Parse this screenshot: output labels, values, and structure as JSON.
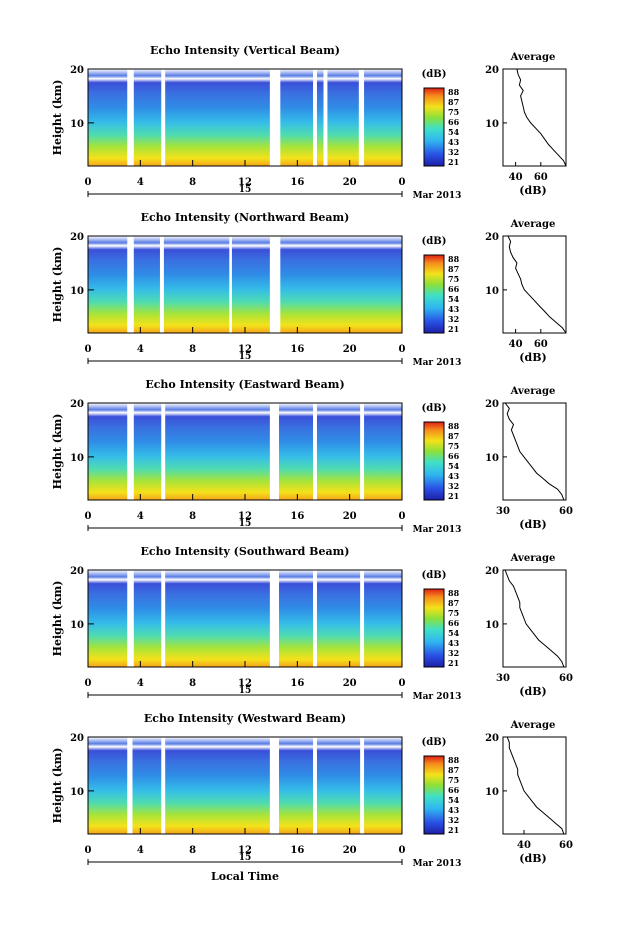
{
  "x_label": "Local Time",
  "date_label": "Mar 2013",
  "day_label": "15",
  "colorbar_unit": "(dB)",
  "colorbar_ticks": [
    "88",
    "87",
    "75",
    "66",
    "54",
    "43",
    "32",
    "21"
  ],
  "ylabel": "Height (km)",
  "avg_title": "Average",
  "avg_xlabel": "(dB)",
  "colors": {
    "low": "#2a2fd6",
    "mid_cyan": "#30d6e8",
    "mid_green": "#8be03a",
    "yellow": "#f4e21a",
    "high": "#e8281a"
  },
  "chart_data": [
    {
      "type": "heatmap",
      "title": "Echo Intensity (Vertical Beam)",
      "x_ticks": [
        "0",
        "4",
        "8",
        "12",
        "16",
        "20",
        "0"
      ],
      "y_ticks": [
        "20",
        "10"
      ],
      "xlim": [
        0,
        24
      ],
      "ylim": [
        2,
        20
      ],
      "gaps_hours": [
        [
          3.0,
          3.5
        ],
        [
          5.6,
          5.9
        ],
        [
          13.9,
          14.7
        ],
        [
          17.2,
          17.5
        ],
        [
          18.0,
          18.3
        ],
        [
          20.7,
          21.1
        ]
      ],
      "avg": {
        "xlim": [
          30,
          80
        ],
        "x_ticks": [
          "40",
          "60"
        ],
        "y_ticks": [
          "20",
          "10"
        ],
        "profile": [
          [
            80,
            2
          ],
          [
            78,
            3
          ],
          [
            74,
            4
          ],
          [
            70,
            5
          ],
          [
            66,
            6
          ],
          [
            63,
            7
          ],
          [
            60,
            8
          ],
          [
            56,
            9
          ],
          [
            52,
            10
          ],
          [
            49,
            11
          ],
          [
            47,
            12
          ],
          [
            46,
            13
          ],
          [
            45,
            14
          ],
          [
            44,
            15
          ],
          [
            46,
            16
          ],
          [
            43,
            17
          ],
          [
            44,
            18
          ],
          [
            42,
            19
          ],
          [
            41,
            20
          ]
        ]
      }
    },
    {
      "type": "heatmap",
      "title": "Echo Intensity (Northward Beam)",
      "x_ticks": [
        "0",
        "4",
        "8",
        "12",
        "16",
        "20",
        "0"
      ],
      "y_ticks": [
        "20",
        "10"
      ],
      "xlim": [
        0,
        24
      ],
      "ylim": [
        2,
        20
      ],
      "gaps_hours": [
        [
          3.0,
          3.5
        ],
        [
          5.5,
          5.8
        ],
        [
          10.8,
          11.0
        ],
        [
          13.9,
          14.7
        ]
      ],
      "avg": {
        "xlim": [
          30,
          80
        ],
        "x_ticks": [
          "40",
          "60"
        ],
        "y_ticks": [
          "20",
          "10"
        ],
        "profile": [
          [
            80,
            2
          ],
          [
            77,
            3
          ],
          [
            72,
            4
          ],
          [
            67,
            5
          ],
          [
            63,
            6
          ],
          [
            59,
            7
          ],
          [
            55,
            8
          ],
          [
            51,
            9
          ],
          [
            47,
            10
          ],
          [
            45,
            11
          ],
          [
            44,
            12
          ],
          [
            42,
            13
          ],
          [
            40,
            14
          ],
          [
            41,
            15
          ],
          [
            38,
            16
          ],
          [
            36,
            17
          ],
          [
            35,
            18
          ],
          [
            36,
            19
          ],
          [
            34,
            20
          ]
        ]
      }
    },
    {
      "type": "heatmap",
      "title": "Echo Intensity (Eastward Beam)",
      "x_ticks": [
        "0",
        "4",
        "8",
        "12",
        "16",
        "20",
        "0"
      ],
      "y_ticks": [
        "20",
        "10"
      ],
      "xlim": [
        0,
        24
      ],
      "ylim": [
        2,
        20
      ],
      "gaps_hours": [
        [
          3.0,
          3.5
        ],
        [
          5.6,
          5.9
        ],
        [
          13.9,
          14.6
        ],
        [
          17.2,
          17.5
        ],
        [
          20.8,
          21.1
        ]
      ],
      "avg": {
        "xlim": [
          30,
          60
        ],
        "x_ticks": [
          "30",
          "60"
        ],
        "y_ticks": [
          "20",
          "10"
        ],
        "profile": [
          [
            59,
            2
          ],
          [
            58,
            3
          ],
          [
            56,
            4
          ],
          [
            52,
            5
          ],
          [
            49,
            6
          ],
          [
            46,
            7
          ],
          [
            44,
            8
          ],
          [
            42,
            9
          ],
          [
            40,
            10
          ],
          [
            38,
            11
          ],
          [
            37,
            12
          ],
          [
            36,
            13
          ],
          [
            35,
            14
          ],
          [
            34,
            15
          ],
          [
            35,
            16
          ],
          [
            33,
            17
          ],
          [
            32,
            18
          ],
          [
            33,
            19
          ],
          [
            31,
            20
          ]
        ]
      }
    },
    {
      "type": "heatmap",
      "title": "Echo Intensity (Southward Beam)",
      "x_ticks": [
        "0",
        "4",
        "8",
        "12",
        "16",
        "20",
        "0"
      ],
      "y_ticks": [
        "20",
        "10"
      ],
      "xlim": [
        0,
        24
      ],
      "ylim": [
        2,
        20
      ],
      "gaps_hours": [
        [
          3.0,
          3.5
        ],
        [
          5.6,
          5.9
        ],
        [
          13.9,
          14.6
        ],
        [
          17.2,
          17.5
        ],
        [
          20.8,
          21.1
        ]
      ],
      "avg": {
        "xlim": [
          30,
          60
        ],
        "x_ticks": [
          "30",
          "60"
        ],
        "y_ticks": [
          "20",
          "10"
        ],
        "profile": [
          [
            59,
            2
          ],
          [
            58,
            3
          ],
          [
            56,
            4
          ],
          [
            53,
            5
          ],
          [
            50,
            6
          ],
          [
            47,
            7
          ],
          [
            45,
            8
          ],
          [
            43,
            9
          ],
          [
            41,
            10
          ],
          [
            40,
            11
          ],
          [
            39,
            12
          ],
          [
            38,
            13
          ],
          [
            38,
            14
          ],
          [
            37,
            15
          ],
          [
            36,
            16
          ],
          [
            35,
            17
          ],
          [
            33,
            18
          ],
          [
            32,
            19
          ],
          [
            31,
            20
          ]
        ]
      }
    },
    {
      "type": "heatmap",
      "title": "Echo Intensity (Westward Beam)",
      "x_ticks": [
        "0",
        "4",
        "8",
        "12",
        "16",
        "20",
        "0"
      ],
      "y_ticks": [
        "20",
        "10"
      ],
      "xlim": [
        0,
        24
      ],
      "ylim": [
        2,
        20
      ],
      "gaps_hours": [
        [
          3.0,
          3.4
        ],
        [
          5.6,
          5.9
        ],
        [
          13.9,
          14.6
        ],
        [
          17.2,
          17.5
        ],
        [
          20.8,
          21.1
        ]
      ],
      "avg": {
        "xlim": [
          30,
          60
        ],
        "x_ticks": [
          "40",
          "60"
        ],
        "y_ticks": [
          "20",
          "10"
        ],
        "profile": [
          [
            59,
            2
          ],
          [
            58,
            3
          ],
          [
            55,
            4
          ],
          [
            52,
            5
          ],
          [
            49,
            6
          ],
          [
            46,
            7
          ],
          [
            44,
            8
          ],
          [
            42,
            9
          ],
          [
            40,
            10
          ],
          [
            39,
            11
          ],
          [
            38,
            12
          ],
          [
            37,
            13
          ],
          [
            37,
            14
          ],
          [
            36,
            15
          ],
          [
            35,
            16
          ],
          [
            34,
            17
          ],
          [
            33,
            18
          ],
          [
            33,
            19
          ],
          [
            32,
            20
          ]
        ]
      }
    }
  ]
}
